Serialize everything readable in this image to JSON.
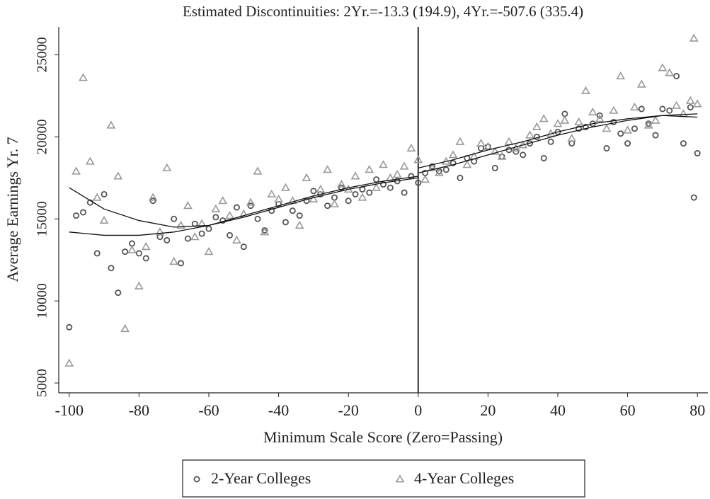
{
  "chart_data": {
    "type": "scatter",
    "title": "Estimated Discontinuities: 2Yr.=-13.3 (194.9), 4Yr.=-507.6 (335.4)",
    "xlabel": "Minimum Scale Score (Zero=Passing)",
    "ylabel": "Average Earnings Yr. 7",
    "xlim": [
      -103,
      83
    ],
    "ylim": [
      4400,
      26700
    ],
    "xticks": [
      -100,
      -80,
      -60,
      -40,
      -20,
      0,
      20,
      40,
      60,
      80
    ],
    "yticks": [
      5000,
      10000,
      15000,
      20000,
      25000
    ],
    "vline": 0,
    "series": [
      {
        "name": "2-Year Colleges",
        "color": "#555555",
        "marker": "circle",
        "x": [
          -100,
          -98,
          -96,
          -94,
          -92,
          -90,
          -88,
          -86,
          -84,
          -82,
          -80,
          -78,
          -76,
          -74,
          -72,
          -70,
          -68,
          -66,
          -64,
          -62,
          -60,
          -58,
          -56,
          -54,
          -52,
          -50,
          -48,
          -46,
          -44,
          -42,
          -40,
          -38,
          -36,
          -34,
          -32,
          -30,
          -28,
          -26,
          -24,
          -22,
          -20,
          -18,
          -16,
          -14,
          -12,
          -10,
          -8,
          -6,
          -4,
          -2,
          0,
          2,
          4,
          6,
          8,
          10,
          12,
          14,
          16,
          18,
          20,
          22,
          24,
          26,
          28,
          30,
          32,
          34,
          36,
          38,
          40,
          42,
          44,
          46,
          48,
          50,
          52,
          54,
          56,
          58,
          60,
          62,
          64,
          66,
          68,
          70,
          72,
          74,
          76,
          78,
          80,
          79
        ],
        "values": [
          8400,
          15200,
          15400,
          16000,
          12900,
          16500,
          12000,
          10500,
          13000,
          13500,
          12900,
          12600,
          16100,
          13900,
          13700,
          15000,
          12300,
          13800,
          14700,
          14100,
          14400,
          15100,
          14900,
          14000,
          15700,
          13300,
          15800,
          15000,
          14300,
          15500,
          15900,
          14800,
          15500,
          15200,
          16100,
          16700,
          16500,
          15800,
          16300,
          16900,
          16100,
          16500,
          16800,
          16600,
          17400,
          17100,
          16900,
          17300,
          16600,
          17600,
          17200,
          17800,
          18200,
          17900,
          18000,
          18400,
          17500,
          18700,
          18500,
          19300,
          19400,
          18100,
          18800,
          19200,
          19100,
          18900,
          19600,
          20000,
          18700,
          19700,
          20300,
          21400,
          19600,
          20500,
          20600,
          20800,
          21300,
          19300,
          20900,
          20200,
          19600,
          20500,
          21700,
          20800,
          20100,
          21700,
          21600,
          23700,
          19600,
          21800,
          19000,
          16300
        ]
      },
      {
        "name": "4-Year Colleges",
        "color": "#999999",
        "marker": "triangle",
        "x": [
          -100,
          -98,
          -96,
          -94,
          -92,
          -90,
          -88,
          -86,
          -84,
          -82,
          -80,
          -78,
          -76,
          -74,
          -72,
          -70,
          -68,
          -66,
          -64,
          -62,
          -60,
          -58,
          -56,
          -54,
          -52,
          -50,
          -48,
          -46,
          -44,
          -42,
          -40,
          -38,
          -36,
          -34,
          -32,
          -30,
          -28,
          -26,
          -24,
          -22,
          -20,
          -18,
          -16,
          -14,
          -12,
          -10,
          -8,
          -6,
          -4,
          -2,
          0,
          2,
          4,
          6,
          8,
          10,
          12,
          14,
          16,
          18,
          20,
          22,
          24,
          26,
          28,
          30,
          32,
          34,
          36,
          38,
          40,
          42,
          44,
          46,
          48,
          50,
          52,
          54,
          56,
          58,
          60,
          62,
          64,
          66,
          68,
          70,
          72,
          74,
          76,
          78,
          80,
          79
        ],
        "values": [
          6200,
          17900,
          23600,
          18500,
          16300,
          14900,
          20700,
          17600,
          8300,
          13100,
          10900,
          13300,
          16300,
          14200,
          18100,
          12400,
          14600,
          15800,
          13900,
          14700,
          13000,
          15600,
          16100,
          15200,
          13700,
          15300,
          16000,
          17900,
          14200,
          16500,
          16200,
          16900,
          16100,
          14600,
          17500,
          16200,
          16800,
          18000,
          15900,
          17100,
          16800,
          17600,
          16300,
          18000,
          16900,
          18300,
          17500,
          17700,
          18200,
          19300,
          18600,
          17400,
          18100,
          17800,
          18500,
          18900,
          19700,
          18300,
          18800,
          19600,
          19400,
          19100,
          18800,
          19700,
          19300,
          19500,
          20100,
          20600,
          21100,
          20200,
          20800,
          21000,
          19900,
          20900,
          22800,
          21500,
          21100,
          20500,
          21600,
          23700,
          20400,
          21800,
          23200,
          20700,
          21000,
          24200,
          23900,
          21900,
          21400,
          22200,
          22000,
          26000
        ]
      }
    ],
    "lines": [
      {
        "x": [
          -100,
          -90,
          -80,
          -70,
          -60,
          -50,
          -40,
          -30,
          -20,
          -10,
          0
        ],
        "values": [
          16900,
          15600,
          14900,
          14500,
          14600,
          15100,
          15700,
          16300,
          16800,
          17200,
          17500
        ]
      },
      {
        "x": [
          0,
          10,
          20,
          30,
          40,
          50,
          60,
          70,
          80
        ],
        "values": [
          17800,
          18300,
          18900,
          19500,
          20100,
          20600,
          21000,
          21300,
          21400
        ]
      },
      {
        "x": [
          -100,
          -90,
          -80,
          -70,
          -60,
          -50,
          -40,
          -30,
          -20,
          -10,
          0
        ],
        "values": [
          14200,
          14000,
          14000,
          14200,
          14600,
          15200,
          15800,
          16400,
          16900,
          17300,
          17600
        ]
      },
      {
        "x": [
          0,
          10,
          20,
          30,
          40,
          50,
          60,
          70,
          80
        ],
        "values": [
          18100,
          18600,
          19200,
          19700,
          20300,
          20800,
          21100,
          21300,
          21200
        ]
      }
    ]
  }
}
